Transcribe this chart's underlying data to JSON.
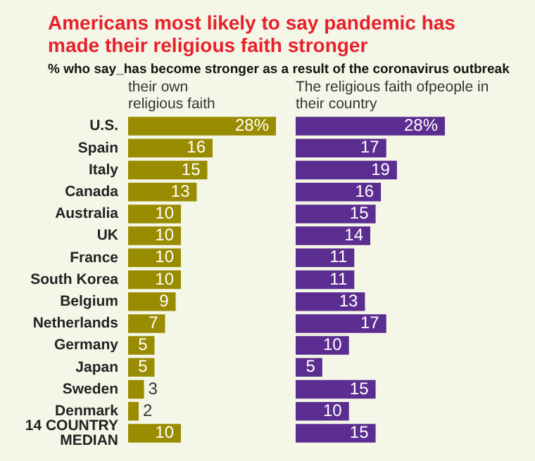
{
  "chart_data": [
    {
      "type": "other",
      "title": "Americans most likely to say pandemic has made their religious faith stronger",
      "subtitle": "% who say_has become stronger as a result of the coronavirus outbreak"
    },
    {
      "type": "bar",
      "orientation": "horizontal",
      "title": "their own religious faith",
      "tick_labels": "y",
      "grid": false,
      "legend": false,
      "categories": [
        "U.S.",
        "Spain",
        "Italy",
        "Canada",
        "Australia",
        "UK",
        "France",
        "South Korea",
        "Belgium",
        "Netherlands",
        "Germany",
        "Japan",
        "Sweden",
        "Denmark",
        "14 COUNTRY MEDIAN"
      ],
      "values": [
        28,
        16,
        15,
        13,
        10,
        10,
        10,
        10,
        9,
        7,
        5,
        5,
        3,
        2,
        10
      ],
      "value_labels": [
        "28%",
        "16",
        "15",
        "13",
        "10",
        "10",
        "10",
        "10",
        "9",
        "7",
        "5",
        "5",
        "3",
        "2",
        "10"
      ],
      "color": "#9a8c00"
    },
    {
      "type": "bar",
      "orientation": "horizontal",
      "title": "The religious faith ofpeople in their country",
      "tick_labels": false,
      "grid": false,
      "legend": false,
      "values": [
        28,
        17,
        19,
        16,
        15,
        14,
        11,
        11,
        13,
        17,
        10,
        5,
        15,
        10,
        15
      ],
      "categories": [
        null,
        null,
        null,
        null,
        null,
        null,
        null,
        null,
        null,
        null,
        null,
        null,
        null,
        null,
        null
      ],
      "value_labels": [
        "28%",
        "17",
        "19",
        "16",
        "15",
        "14",
        "11",
        "11",
        "13",
        "17",
        "10",
        "5",
        "15",
        "10",
        "15"
      ],
      "color": "#5b2d90"
    }
  ]
}
